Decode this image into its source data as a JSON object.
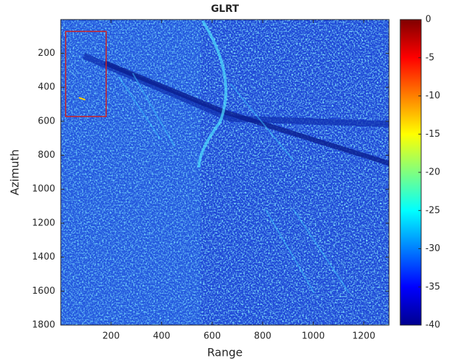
{
  "chart_data": {
    "type": "heatmap",
    "title": "GLRT",
    "x_label": "Range",
    "y_label": "Azimuth",
    "xlim": [
      1,
      1300
    ],
    "xticks": [
      200,
      400,
      600,
      800,
      1000,
      1200
    ],
    "ylim": [
      1,
      1800
    ],
    "yticks": [
      200,
      400,
      600,
      800,
      1000,
      1200,
      1400,
      1600,
      1800
    ],
    "y_inverted": true,
    "colorbar": {
      "colormap": "jet",
      "lim": [
        -40,
        0
      ],
      "ticks": [
        0,
        -5,
        -10,
        -15,
        -20,
        -25,
        -30,
        -35,
        -40
      ]
    }
  }
}
